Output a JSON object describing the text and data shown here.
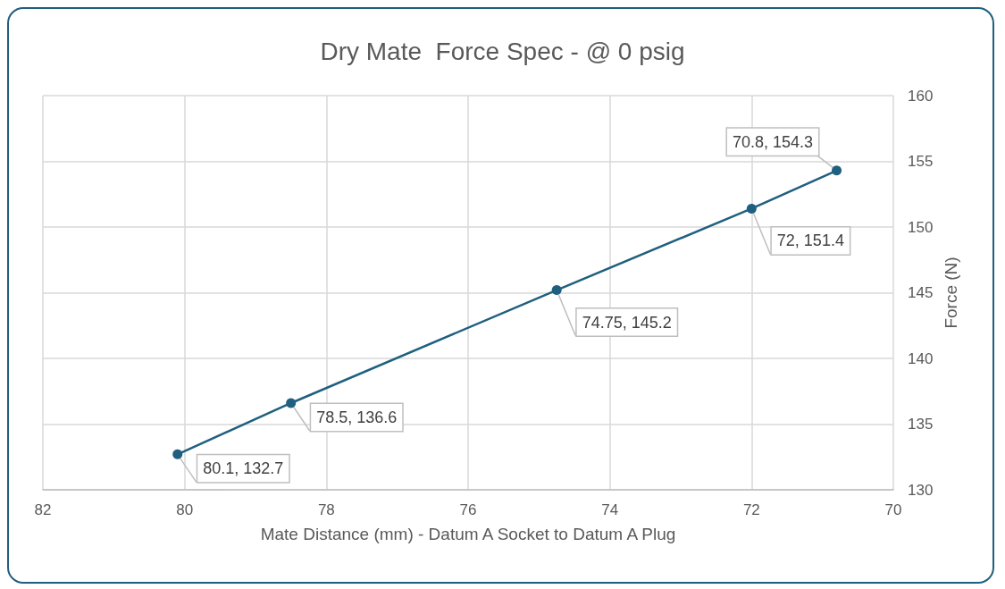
{
  "chart_data": {
    "type": "line",
    "title": "Dry Mate  Force Spec - @ 0 psig",
    "xlabel": "Mate Distance (mm) - Datum A Socket to Datum A Plug",
    "ylabel": "Force (N)",
    "x": [
      80.1,
      78.5,
      74.75,
      72,
      70.8
    ],
    "series": [
      {
        "color": "#1f5f7f",
        "values": [
          132.7,
          136.6,
          145.2,
          151.4,
          154.3
        ],
        "value_labels": [
          "80.1, 132.7",
          "78.5, 136.6",
          "74.75, 145.2",
          "72, 151.4",
          "70.8, 154.3"
        ]
      }
    ],
    "xlim": [
      82,
      70
    ],
    "xticks": [
      82,
      80,
      78,
      76,
      74,
      72,
      70
    ],
    "ylim": [
      130,
      160
    ],
    "yticks": [
      130,
      135,
      140,
      145,
      150,
      155,
      160
    ],
    "grid": true,
    "marker": "circle",
    "line_style": "solid"
  }
}
